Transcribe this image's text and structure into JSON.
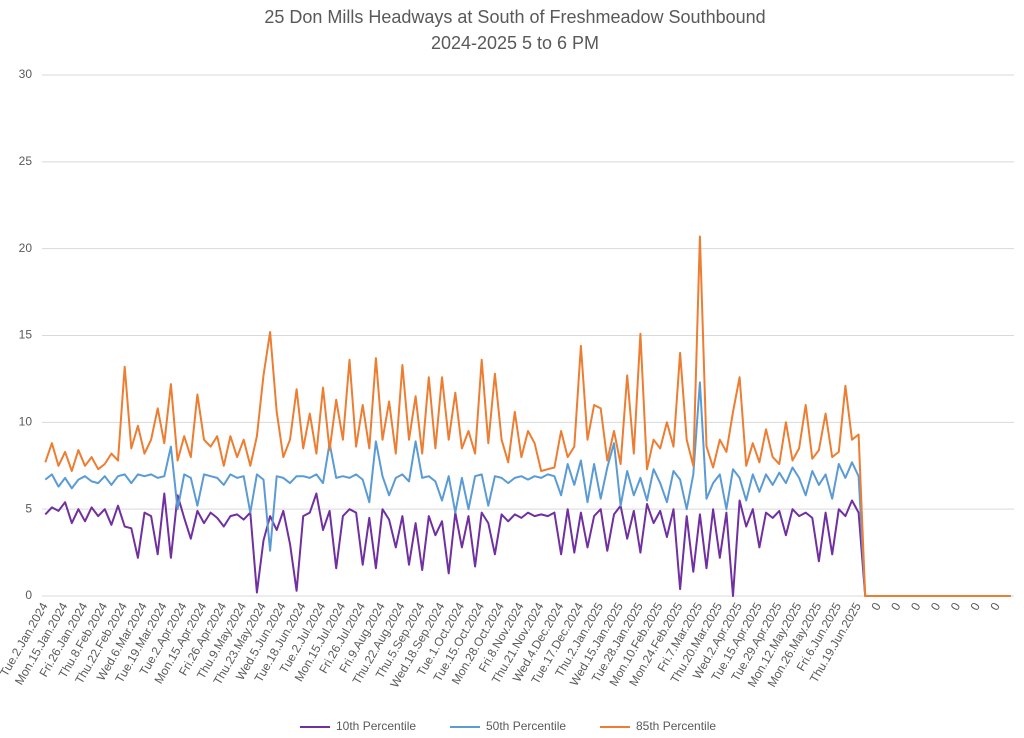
{
  "chart_data": {
    "type": "line",
    "title": "25 Don Mills Headways at South of Freshmeadow Southbound",
    "subtitle": "2024-2025 5 to 6 PM",
    "categories": [
      "Tue.2.Jan.2024",
      null,
      null,
      "Mon.15.Jan.2024",
      null,
      null,
      "Fri.26.Jan.2024",
      null,
      null,
      "Thu.8.Feb.2024",
      null,
      null,
      "Thu.22.Feb.2024",
      null,
      null,
      "Wed.6.Mar.2024",
      null,
      null,
      "Tue.19.Mar.2024",
      null,
      null,
      "Tue.2.Apr.2024",
      null,
      null,
      "Mon.15.Apr.2024",
      null,
      null,
      "Fri.26.Apr.2024",
      null,
      null,
      "Thu.9.May.2024",
      null,
      null,
      "Thu.23.May.2024",
      null,
      null,
      "Wed.5.Jun.2024",
      null,
      null,
      "Tue.18.Jun.2024",
      null,
      null,
      "Tue.2.Jul.2024",
      null,
      null,
      "Mon.15.Jul.2024",
      null,
      null,
      "Fri.26.Jul.2024",
      null,
      null,
      "Fri.9.Aug.2024",
      null,
      null,
      "Thu.22.Aug.2024",
      null,
      null,
      "Thu.5.Sep.2024",
      null,
      null,
      "Wed.18.Sep.2024",
      null,
      null,
      "Tue.1.Oct.2024",
      null,
      null,
      "Tue.15.Oct.2024",
      null,
      null,
      "Mon.28.Oct.2024",
      null,
      null,
      "Fri.8.Nov.2024",
      null,
      null,
      "Thu.21.Nov.2024",
      null,
      null,
      "Wed.4.Dec.2024",
      null,
      null,
      "Tue.17.Dec.2024",
      null,
      null,
      "Thu.2.Jan.2025",
      null,
      null,
      "Wed.15.Jan.2025",
      null,
      null,
      "Tue.28.Jan.2025",
      null,
      null,
      "Mon.10.Feb.2025",
      null,
      null,
      "Mon.24.Feb.2025",
      null,
      null,
      "Fri.7.Mar.2025",
      null,
      null,
      "Thu.20.Mar.2025",
      null,
      null,
      "Wed.2.Apr.2025",
      null,
      null,
      "Tue.15.Apr.2025",
      null,
      null,
      "Tue.29.Apr.2025",
      null,
      null,
      "Mon.12.May.2025",
      null,
      null,
      "Mon.26.May.2025",
      null,
      null,
      "Fri.6.Jun.2025",
      null,
      null,
      "Thu.19.Jun.2025",
      null,
      null,
      "0",
      null,
      null,
      "0",
      null,
      null,
      "0",
      null,
      null,
      "0",
      null,
      null,
      "0",
      null,
      null,
      "0",
      null,
      null,
      "0",
      null,
      null
    ],
    "series": [
      {
        "name": "10th Percentile",
        "color": "#7030a0",
        "values": [
          4.7,
          5.1,
          4.9,
          5.4,
          4.2,
          5.0,
          4.3,
          5.1,
          4.6,
          5.0,
          4.1,
          5.2,
          4.0,
          3.9,
          2.2,
          4.8,
          4.6,
          2.4,
          5.9,
          2.2,
          5.8,
          4.5,
          3.3,
          4.9,
          4.2,
          4.8,
          4.5,
          4.0,
          4.6,
          4.7,
          4.4,
          4.8,
          0.2,
          3.2,
          4.6,
          3.8,
          4.9,
          3.0,
          0.3,
          4.6,
          4.8,
          5.9,
          3.8,
          4.9,
          1.6,
          4.6,
          5.0,
          4.8,
          1.8,
          4.5,
          1.6,
          5.0,
          4.4,
          2.8,
          4.6,
          1.8,
          4.2,
          1.5,
          4.6,
          3.5,
          4.3,
          1.3,
          4.8,
          2.8,
          4.6,
          1.7,
          4.8,
          4.2,
          2.4,
          4.7,
          4.3,
          4.7,
          4.5,
          4.8,
          4.6,
          4.7,
          4.6,
          4.8,
          2.4,
          5.0,
          2.5,
          4.8,
          2.8,
          4.6,
          5.0,
          2.6,
          4.7,
          5.2,
          3.3,
          4.9,
          2.5,
          5.3,
          4.2,
          4.9,
          3.4,
          5.0,
          0.4,
          4.6,
          1.4,
          4.7,
          1.6,
          5.0,
          2.2,
          4.8,
          0,
          5.5,
          4.0,
          5.0,
          2.8,
          4.8,
          4.5,
          4.9,
          3.5,
          5.0,
          4.6,
          4.8,
          4.5,
          2.0,
          4.8,
          2.4,
          5.0,
          4.6,
          5.5,
          4.8,
          0,
          0,
          0,
          0,
          0,
          0,
          0,
          0,
          0,
          0,
          0,
          0,
          0,
          0,
          0,
          0,
          0,
          0,
          0,
          0,
          0,
          0,
          0
        ]
      },
      {
        "name": "50th Percentile",
        "color": "#5b9bd5",
        "values": [
          6.7,
          7.0,
          6.3,
          6.8,
          6.2,
          6.7,
          6.9,
          6.6,
          6.5,
          6.9,
          6.4,
          6.9,
          7.0,
          6.5,
          7.0,
          6.9,
          7.0,
          6.8,
          6.9,
          8.6,
          5.0,
          7.0,
          6.8,
          5.2,
          7.0,
          6.9,
          6.8,
          6.4,
          7.0,
          6.8,
          6.9,
          4.8,
          7.0,
          6.7,
          2.6,
          6.9,
          6.8,
          6.5,
          6.9,
          6.9,
          6.8,
          7.0,
          6.5,
          8.8,
          6.8,
          6.9,
          6.8,
          7.0,
          6.7,
          5.4,
          8.9,
          6.9,
          5.8,
          6.8,
          7.0,
          6.6,
          8.9,
          6.8,
          6.9,
          6.6,
          5.5,
          6.9,
          4.8,
          6.8,
          5.0,
          6.9,
          7.0,
          5.2,
          6.9,
          6.8,
          6.5,
          6.8,
          6.9,
          6.7,
          6.9,
          6.8,
          7.0,
          6.9,
          5.8,
          7.6,
          6.4,
          7.8,
          5.4,
          7.6,
          5.6,
          7.4,
          8.8,
          5.2,
          7.2,
          5.8,
          6.8,
          5.5,
          7.3,
          6.5,
          5.4,
          7.2,
          6.7,
          5.0,
          7.0,
          12.3,
          5.6,
          6.5,
          7.0,
          5.0,
          7.3,
          6.8,
          5.5,
          7.0,
          6.0,
          7.0,
          6.4,
          7.1,
          6.5,
          7.4,
          6.8,
          5.8,
          7.2,
          6.4,
          7.0,
          5.6,
          7.6,
          6.8,
          7.7,
          6.9,
          0,
          0,
          0,
          0,
          0,
          0,
          0,
          0,
          0,
          0,
          0,
          0,
          0,
          0,
          0,
          0,
          0,
          0,
          0,
          0,
          0,
          0,
          0
        ]
      },
      {
        "name": "85th Percentile",
        "color": "#ed7d31",
        "values": [
          7.7,
          8.8,
          7.5,
          8.3,
          7.2,
          8.4,
          7.5,
          8.0,
          7.3,
          7.6,
          8.2,
          7.8,
          13.2,
          8.5,
          9.8,
          8.2,
          9.0,
          10.8,
          8.8,
          12.2,
          7.8,
          9.2,
          8.0,
          11.6,
          9.0,
          8.6,
          9.2,
          7.5,
          9.2,
          8.0,
          9.0,
          7.5,
          9.2,
          12.7,
          15.2,
          10.6,
          8.0,
          9.0,
          11.9,
          8.5,
          10.5,
          8.2,
          12.0,
          8.4,
          11.3,
          9.0,
          13.6,
          8.6,
          11.0,
          8.5,
          13.7,
          9.0,
          11.2,
          8.2,
          13.3,
          9.0,
          11.5,
          8.2,
          12.6,
          8.5,
          12.6,
          9.0,
          11.7,
          8.5,
          9.5,
          8.2,
          13.6,
          8.8,
          12.8,
          9.0,
          7.7,
          10.6,
          8.0,
          9.5,
          8.8,
          7.2,
          7.3,
          7.4,
          9.5,
          8.0,
          8.6,
          14.4,
          9.0,
          11.0,
          10.8,
          7.8,
          9.5,
          7.6,
          12.7,
          8.2,
          15.1,
          7.3,
          9.0,
          8.5,
          10.0,
          8.6,
          14.0,
          9.0,
          7.5,
          20.7,
          8.6,
          7.4,
          9.0,
          8.3,
          10.6,
          12.6,
          7.5,
          8.8,
          7.7,
          9.6,
          8.0,
          7.6,
          10.0,
          7.8,
          8.5,
          11.0,
          7.9,
          8.4,
          10.5,
          8.0,
          8.3,
          12.1,
          9.0,
          9.3,
          0,
          0,
          0,
          0,
          0,
          0,
          0,
          0,
          0,
          0,
          0,
          0,
          0,
          0,
          0,
          0,
          0,
          0,
          0,
          0,
          0,
          0,
          0
        ]
      }
    ],
    "ylim": [
      0,
      30
    ],
    "yticks": [
      0,
      5,
      10,
      15,
      20,
      25,
      30
    ],
    "grid": true,
    "legend": "bottom"
  }
}
